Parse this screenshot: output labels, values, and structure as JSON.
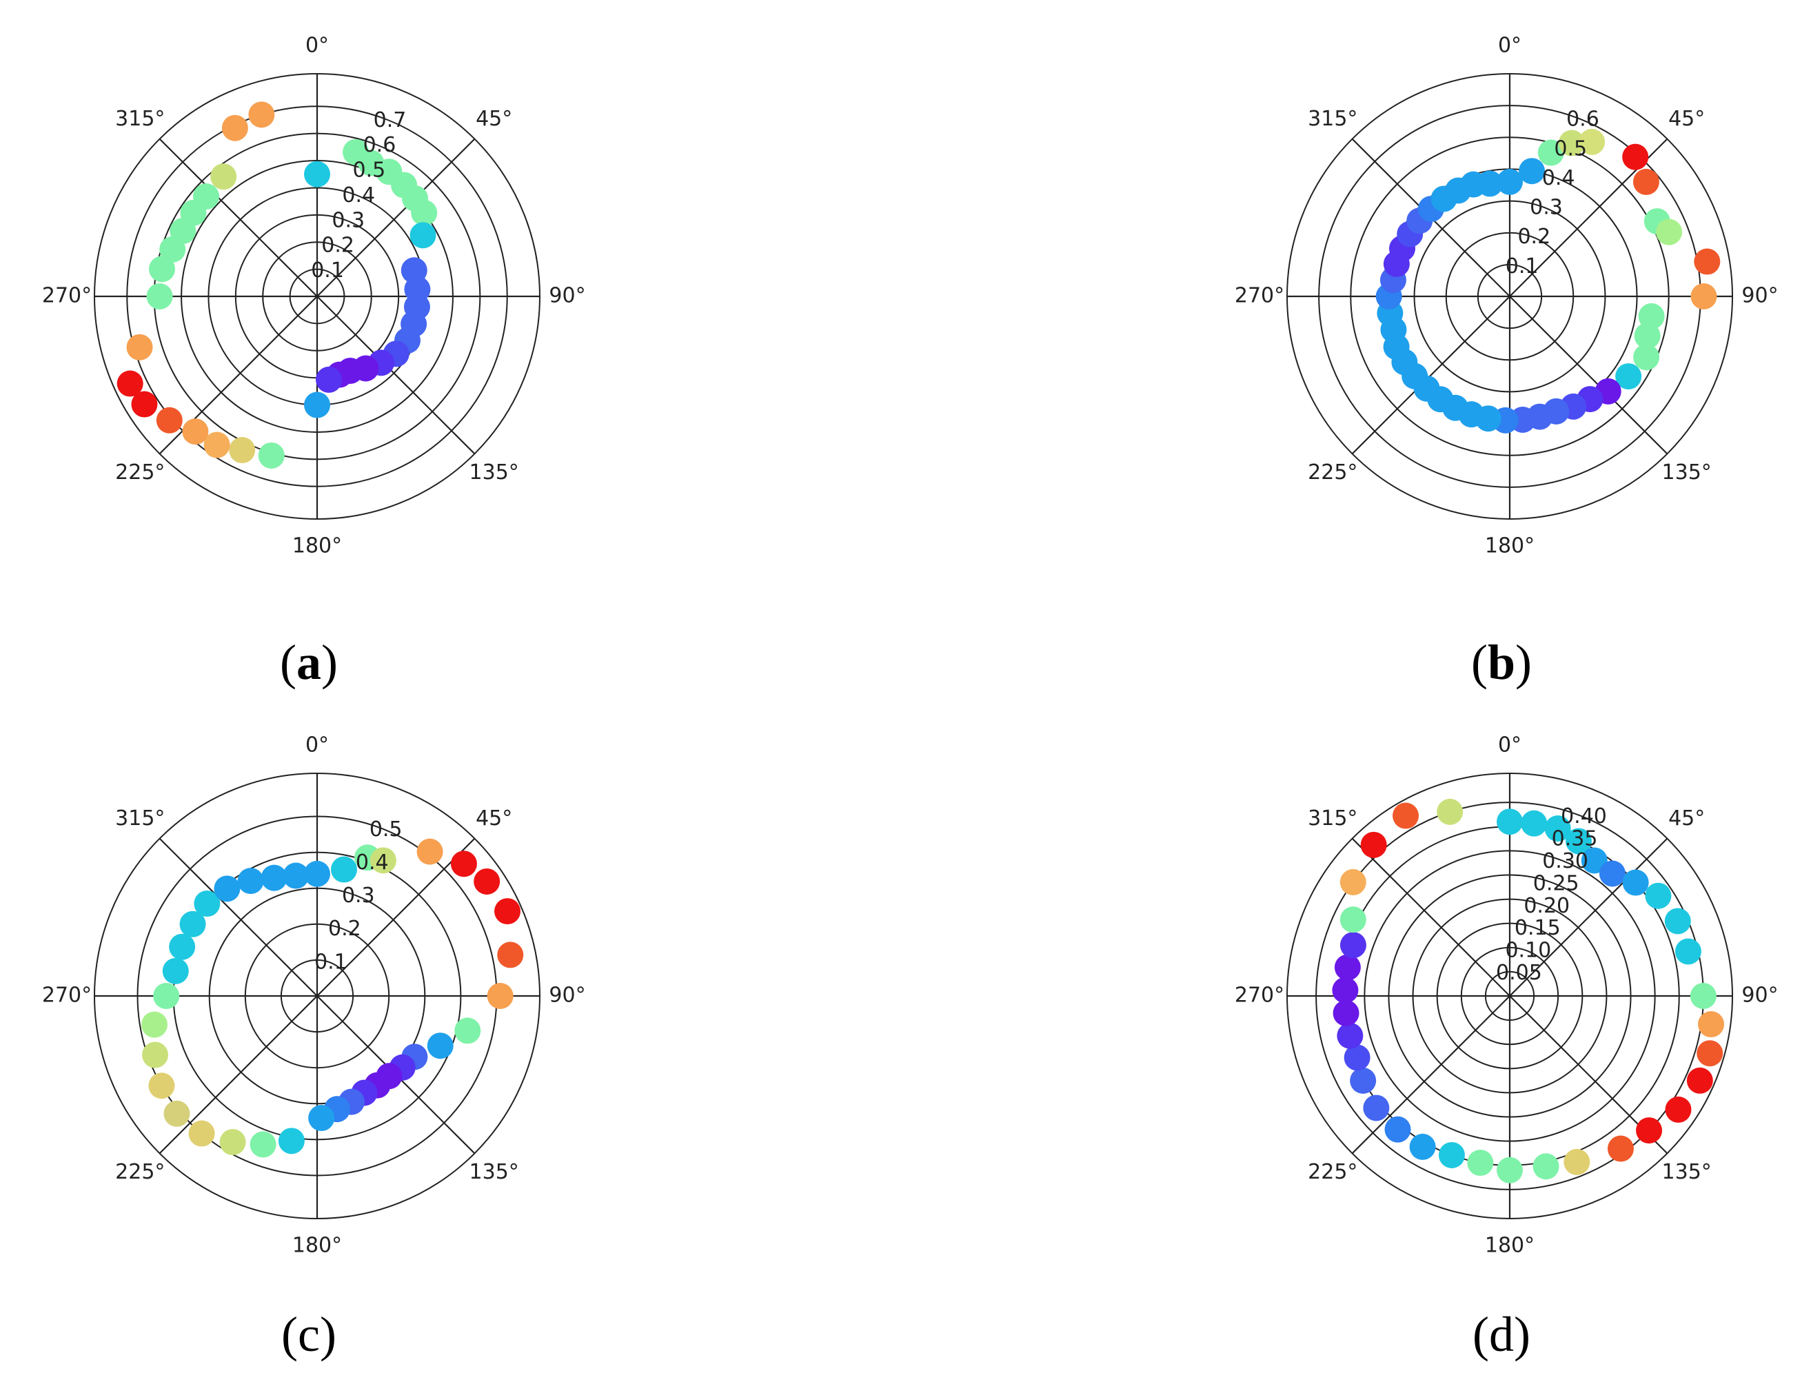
{
  "chart_data": [
    {
      "type": "scatter",
      "projection": "polar",
      "panel_label": "a",
      "angle_ticks": [
        "0°",
        "45°",
        "90°",
        "135°",
        "180°",
        "225°",
        "270°",
        "315°"
      ],
      "r_ticks": [
        "0.1",
        "0.2",
        "0.3",
        "0.4",
        "0.5",
        "0.6",
        "0.7"
      ],
      "r_tick_values": [
        0.1,
        0.2,
        0.3,
        0.4,
        0.5,
        0.6,
        0.7
      ],
      "rmax": 0.82,
      "theta_zero": "top",
      "theta_direction": "clockwise",
      "grid": true,
      "points": [
        {
          "theta": 0,
          "r": 0.45,
          "color": "#1ec8e0"
        },
        {
          "theta": 15,
          "r": 0.55,
          "color": "#7ef2a8"
        },
        {
          "theta": 22,
          "r": 0.53,
          "color": "#7ef2a8"
        },
        {
          "theta": 30,
          "r": 0.53,
          "color": "#7ef2a8"
        },
        {
          "theta": 38,
          "r": 0.52,
          "color": "#7ef2a8"
        },
        {
          "theta": 45,
          "r": 0.51,
          "color": "#7ef2a8"
        },
        {
          "theta": 52,
          "r": 0.5,
          "color": "#7ef2a8"
        },
        {
          "theta": 60,
          "r": 0.45,
          "color": "#1ec8e0"
        },
        {
          "theta": 75,
          "r": 0.37,
          "color": "#4466f0"
        },
        {
          "theta": 86,
          "r": 0.37,
          "color": "#4466f0"
        },
        {
          "theta": 96,
          "r": 0.37,
          "color": "#4466f0"
        },
        {
          "theta": 106,
          "r": 0.37,
          "color": "#4466f0"
        },
        {
          "theta": 116,
          "r": 0.37,
          "color": "#4466f0"
        },
        {
          "theta": 126,
          "r": 0.36,
          "color": "#4a4df2"
        },
        {
          "theta": 136,
          "r": 0.34,
          "color": "#5533f0"
        },
        {
          "theta": 146,
          "r": 0.32,
          "color": "#6a18e8"
        },
        {
          "theta": 156,
          "r": 0.3,
          "color": "#6a18e8"
        },
        {
          "theta": 164,
          "r": 0.3,
          "color": "#6a18e8"
        },
        {
          "theta": 172,
          "r": 0.31,
          "color": "#5533f0"
        },
        {
          "theta": 180,
          "r": 0.4,
          "color": "#1fa0ec"
        },
        {
          "theta": 196,
          "r": 0.61,
          "color": "#7ef2a8"
        },
        {
          "theta": 206,
          "r": 0.63,
          "color": "#e0cf70"
        },
        {
          "theta": 214,
          "r": 0.66,
          "color": "#f6ae5a"
        },
        {
          "theta": 222,
          "r": 0.67,
          "color": "#f6a050"
        },
        {
          "theta": 230,
          "r": 0.71,
          "color": "#f0582a"
        },
        {
          "theta": 238,
          "r": 0.75,
          "color": "#ee1212"
        },
        {
          "theta": 245,
          "r": 0.76,
          "color": "#ee1212"
        },
        {
          "theta": 254,
          "r": 0.68,
          "color": "#f6a050"
        },
        {
          "theta": 270,
          "r": 0.58,
          "color": "#7ef2a8"
        },
        {
          "theta": 280,
          "r": 0.58,
          "color": "#7ef2a8"
        },
        {
          "theta": 288,
          "r": 0.56,
          "color": "#7ef2a8"
        },
        {
          "theta": 296,
          "r": 0.55,
          "color": "#7ef2a8"
        },
        {
          "theta": 304,
          "r": 0.55,
          "color": "#7ef2a8"
        },
        {
          "theta": 312,
          "r": 0.55,
          "color": "#7ef2a8"
        },
        {
          "theta": 322,
          "r": 0.56,
          "color": "#c9e07a"
        },
        {
          "theta": 334,
          "r": 0.69,
          "color": "#f6a050"
        },
        {
          "theta": 343,
          "r": 0.7,
          "color": "#f6a050"
        }
      ]
    },
    {
      "type": "scatter",
      "projection": "polar",
      "panel_label": "b",
      "angle_ticks": [
        "0°",
        "45°",
        "90°",
        "135°",
        "180°",
        "225°",
        "270°",
        "315°"
      ],
      "r_ticks": [
        "0.1",
        "0.2",
        "0.3",
        "0.4",
        "0.5",
        "0.6"
      ],
      "r_tick_values": [
        0.1,
        0.2,
        0.3,
        0.4,
        0.5,
        0.6
      ],
      "rmax": 0.7,
      "theta_zero": "top",
      "theta_direction": "clockwise",
      "grid": true,
      "points": [
        {
          "theta": 0,
          "r": 0.36,
          "color": "#1fa0ec"
        },
        {
          "theta": 10,
          "r": 0.4,
          "color": "#1fa0ec"
        },
        {
          "theta": 16,
          "r": 0.47,
          "color": "#7ef2a8"
        },
        {
          "theta": 22,
          "r": 0.52,
          "color": "#c9e07a"
        },
        {
          "theta": 28,
          "r": 0.55,
          "color": "#d6e07a"
        },
        {
          "theta": 42,
          "r": 0.59,
          "color": "#ee1212"
        },
        {
          "theta": 50,
          "r": 0.56,
          "color": "#f0582a"
        },
        {
          "theta": 63,
          "r": 0.52,
          "color": "#7ef2a8"
        },
        {
          "theta": 68,
          "r": 0.54,
          "color": "#a8f08c"
        },
        {
          "theta": 80,
          "r": 0.63,
          "color": "#f0582a"
        },
        {
          "theta": 90,
          "r": 0.61,
          "color": "#f6a050"
        },
        {
          "theta": 98,
          "r": 0.45,
          "color": "#7ef2a8"
        },
        {
          "theta": 106,
          "r": 0.45,
          "color": "#7ef2a8"
        },
        {
          "theta": 114,
          "r": 0.47,
          "color": "#7ef2a8"
        },
        {
          "theta": 124,
          "r": 0.45,
          "color": "#1ec8e0"
        },
        {
          "theta": 134,
          "r": 0.43,
          "color": "#6a18e8"
        },
        {
          "theta": 142,
          "r": 0.41,
          "color": "#5533f0"
        },
        {
          "theta": 150,
          "r": 0.4,
          "color": "#4a4df2"
        },
        {
          "theta": 158,
          "r": 0.39,
          "color": "#4466f0"
        },
        {
          "theta": 166,
          "r": 0.39,
          "color": "#4466f0"
        },
        {
          "theta": 174,
          "r": 0.39,
          "color": "#4466f0"
        },
        {
          "theta": 182,
          "r": 0.39,
          "color": "#2f80f0"
        },
        {
          "theta": 190,
          "r": 0.39,
          "color": "#1fa0ec"
        },
        {
          "theta": 198,
          "r": 0.39,
          "color": "#1fa0ec"
        },
        {
          "theta": 206,
          "r": 0.39,
          "color": "#1fa0ec"
        },
        {
          "theta": 214,
          "r": 0.39,
          "color": "#1fa0ec"
        },
        {
          "theta": 222,
          "r": 0.39,
          "color": "#1fa0ec"
        },
        {
          "theta": 230,
          "r": 0.39,
          "color": "#1fa0ec"
        },
        {
          "theta": 238,
          "r": 0.39,
          "color": "#1fa0ec"
        },
        {
          "theta": 246,
          "r": 0.39,
          "color": "#1fa0ec"
        },
        {
          "theta": 254,
          "r": 0.38,
          "color": "#1fa0ec"
        },
        {
          "theta": 262,
          "r": 0.38,
          "color": "#1fa0ec"
        },
        {
          "theta": 270,
          "r": 0.38,
          "color": "#2f80f0"
        },
        {
          "theta": 278,
          "r": 0.37,
          "color": "#4466f0"
        },
        {
          "theta": 286,
          "r": 0.37,
          "color": "#5533f0"
        },
        {
          "theta": 294,
          "r": 0.37,
          "color": "#5533f0"
        },
        {
          "theta": 302,
          "r": 0.37,
          "color": "#4a4df2"
        },
        {
          "theta": 310,
          "r": 0.37,
          "color": "#4466f0"
        },
        {
          "theta": 318,
          "r": 0.37,
          "color": "#2f80f0"
        },
        {
          "theta": 326,
          "r": 0.37,
          "color": "#1fa0ec"
        },
        {
          "theta": 334,
          "r": 0.37,
          "color": "#1fa0ec"
        },
        {
          "theta": 342,
          "r": 0.37,
          "color": "#1fa0ec"
        },
        {
          "theta": 350,
          "r": 0.36,
          "color": "#1fa0ec"
        }
      ]
    },
    {
      "type": "scatter",
      "projection": "polar",
      "panel_label": "c",
      "angle_ticks": [
        "0°",
        "45°",
        "90°",
        "135°",
        "180°",
        "225°",
        "270°",
        "315°"
      ],
      "r_ticks": [
        "0.1",
        "0.2",
        "0.3",
        "0.4",
        "0.5"
      ],
      "r_tick_values": [
        0.1,
        0.2,
        0.3,
        0.4,
        0.5
      ],
      "rmax": 0.62,
      "theta_zero": "top",
      "theta_direction": "clockwise",
      "grid": true,
      "points": [
        {
          "theta": 0,
          "r": 0.34,
          "color": "#1fa0ec"
        },
        {
          "theta": 12,
          "r": 0.36,
          "color": "#1ec8e0"
        },
        {
          "theta": 20,
          "r": 0.41,
          "color": "#7ef2a8"
        },
        {
          "theta": 26,
          "r": 0.42,
          "color": "#c9e07a"
        },
        {
          "theta": 38,
          "r": 0.51,
          "color": "#f6a050"
        },
        {
          "theta": 48,
          "r": 0.55,
          "color": "#ee1212"
        },
        {
          "theta": 56,
          "r": 0.57,
          "color": "#ee1212"
        },
        {
          "theta": 66,
          "r": 0.58,
          "color": "#ee1212"
        },
        {
          "theta": 78,
          "r": 0.55,
          "color": "#f0582a"
        },
        {
          "theta": 90,
          "r": 0.51,
          "color": "#f6a050"
        },
        {
          "theta": 103,
          "r": 0.43,
          "color": "#7ef2a8"
        },
        {
          "theta": 112,
          "r": 0.37,
          "color": "#1fa0ec"
        },
        {
          "theta": 122,
          "r": 0.32,
          "color": "#4466f0"
        },
        {
          "theta": 130,
          "r": 0.31,
          "color": "#5533f0"
        },
        {
          "theta": 138,
          "r": 0.3,
          "color": "#6a18e8"
        },
        {
          "theta": 146,
          "r": 0.3,
          "color": "#6a18e8"
        },
        {
          "theta": 154,
          "r": 0.3,
          "color": "#5533f0"
        },
        {
          "theta": 162,
          "r": 0.31,
          "color": "#4466f0"
        },
        {
          "theta": 170,
          "r": 0.32,
          "color": "#2f80f0"
        },
        {
          "theta": 178,
          "r": 0.34,
          "color": "#1fa0ec"
        },
        {
          "theta": 190,
          "r": 0.41,
          "color": "#1ec8e0"
        },
        {
          "theta": 200,
          "r": 0.44,
          "color": "#7ef2a8"
        },
        {
          "theta": 210,
          "r": 0.47,
          "color": "#c9e07a"
        },
        {
          "theta": 220,
          "r": 0.5,
          "color": "#e0cf70"
        },
        {
          "theta": 230,
          "r": 0.51,
          "color": "#d6d07a"
        },
        {
          "theta": 240,
          "r": 0.5,
          "color": "#e0cf70"
        },
        {
          "theta": 250,
          "r": 0.48,
          "color": "#c9e07a"
        },
        {
          "theta": 260,
          "r": 0.46,
          "color": "#a8f08c"
        },
        {
          "theta": 270,
          "r": 0.42,
          "color": "#7ef2a8"
        },
        {
          "theta": 280,
          "r": 0.4,
          "color": "#1ec8e0"
        },
        {
          "theta": 290,
          "r": 0.4,
          "color": "#1ec8e0"
        },
        {
          "theta": 300,
          "r": 0.4,
          "color": "#1ec8e0"
        },
        {
          "theta": 310,
          "r": 0.4,
          "color": "#1ec8e0"
        },
        {
          "theta": 320,
          "r": 0.39,
          "color": "#1fa0ec"
        },
        {
          "theta": 330,
          "r": 0.37,
          "color": "#1fa0ec"
        },
        {
          "theta": 340,
          "r": 0.35,
          "color": "#1fa0ec"
        },
        {
          "theta": 350,
          "r": 0.34,
          "color": "#1fa0ec"
        }
      ]
    },
    {
      "type": "scatter",
      "projection": "polar",
      "panel_label": "d",
      "angle_ticks": [
        "0°",
        "45°",
        "90°",
        "135°",
        "180°",
        "225°",
        "270°",
        "315°"
      ],
      "r_ticks": [
        "0.05",
        "0.10",
        "0.15",
        "0.20",
        "0.25",
        "0.30",
        "0.35",
        "0.40"
      ],
      "r_tick_values": [
        0.05,
        0.1,
        0.15,
        0.2,
        0.25,
        0.3,
        0.35,
        0.4
      ],
      "rmax": 0.46,
      "theta_zero": "top",
      "theta_direction": "clockwise",
      "grid": true,
      "points": [
        {
          "theta": 0,
          "r": 0.36,
          "color": "#1ec8e0"
        },
        {
          "theta": 8,
          "r": 0.36,
          "color": "#1ec8e0"
        },
        {
          "theta": 16,
          "r": 0.36,
          "color": "#1ec8e0"
        },
        {
          "theta": 24,
          "r": 0.35,
          "color": "#1ec8e0"
        },
        {
          "theta": 32,
          "r": 0.33,
          "color": "#1fa0ec"
        },
        {
          "theta": 40,
          "r": 0.33,
          "color": "#2f80f0"
        },
        {
          "theta": 48,
          "r": 0.35,
          "color": "#1fa0ec"
        },
        {
          "theta": 56,
          "r": 0.37,
          "color": "#1ec8e0"
        },
        {
          "theta": 66,
          "r": 0.38,
          "color": "#1ec8e0"
        },
        {
          "theta": 76,
          "r": 0.38,
          "color": "#1ec8e0"
        },
        {
          "theta": 90,
          "r": 0.4,
          "color": "#7ef2a8"
        },
        {
          "theta": 98,
          "r": 0.42,
          "color": "#f6a050"
        },
        {
          "theta": 106,
          "r": 0.43,
          "color": "#f0582a"
        },
        {
          "theta": 114,
          "r": 0.43,
          "color": "#ee1212"
        },
        {
          "theta": 124,
          "r": 0.42,
          "color": "#ee1212"
        },
        {
          "theta": 134,
          "r": 0.4,
          "color": "#ee1212"
        },
        {
          "theta": 144,
          "r": 0.39,
          "color": "#f0582a"
        },
        {
          "theta": 158,
          "r": 0.37,
          "color": "#e0cf70"
        },
        {
          "theta": 168,
          "r": 0.36,
          "color": "#7ef2a8"
        },
        {
          "theta": 180,
          "r": 0.36,
          "color": "#7ef2a8"
        },
        {
          "theta": 190,
          "r": 0.35,
          "color": "#7ef2a8"
        },
        {
          "theta": 200,
          "r": 0.35,
          "color": "#1ec8e0"
        },
        {
          "theta": 210,
          "r": 0.36,
          "color": "#1fa0ec"
        },
        {
          "theta": 220,
          "r": 0.36,
          "color": "#2f80f0"
        },
        {
          "theta": 230,
          "r": 0.36,
          "color": "#4466f0"
        },
        {
          "theta": 240,
          "r": 0.35,
          "color": "#4466f0"
        },
        {
          "theta": 248,
          "r": 0.34,
          "color": "#4a4df2"
        },
        {
          "theta": 256,
          "r": 0.34,
          "color": "#5533f0"
        },
        {
          "theta": 264,
          "r": 0.34,
          "color": "#6a18e8"
        },
        {
          "theta": 272,
          "r": 0.34,
          "color": "#6a18e8"
        },
        {
          "theta": 280,
          "r": 0.34,
          "color": "#6a18e8"
        },
        {
          "theta": 288,
          "r": 0.34,
          "color": "#5533f0"
        },
        {
          "theta": 296,
          "r": 0.36,
          "color": "#7ef2a8"
        },
        {
          "theta": 306,
          "r": 0.4,
          "color": "#f6ae5a"
        },
        {
          "theta": 318,
          "r": 0.42,
          "color": "#ee1212"
        },
        {
          "theta": 330,
          "r": 0.43,
          "color": "#f0582a"
        },
        {
          "theta": 342,
          "r": 0.4,
          "color": "#c9e07a"
        }
      ]
    }
  ]
}
